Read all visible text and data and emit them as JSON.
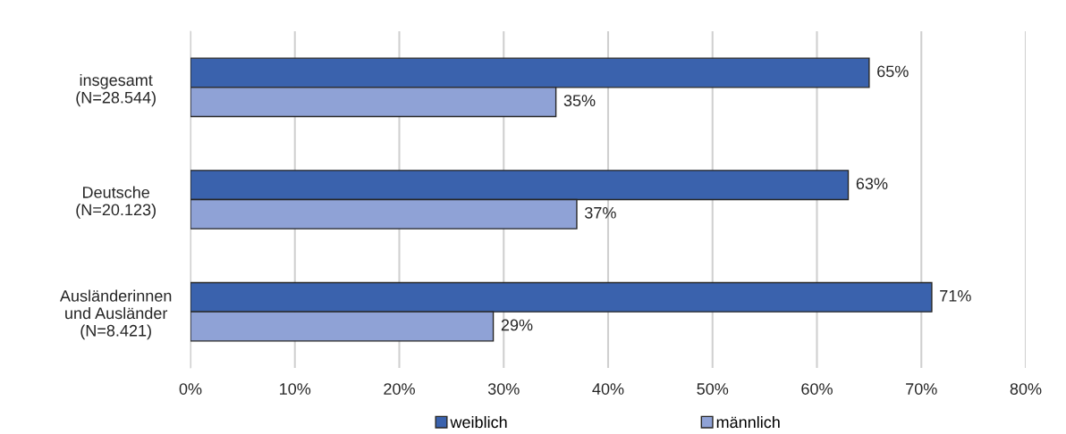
{
  "chart_data": {
    "type": "bar",
    "orientation": "horizontal",
    "categories": [
      "insgesamt\n(N=28.544)",
      "Deutsche\n(N=20.123)",
      "Ausländerinnen\nund Ausländer\n(N=8.421)"
    ],
    "series": [
      {
        "name": "weiblich",
        "color": "#3a62ad",
        "values": [
          65,
          63,
          71
        ],
        "value_labels": [
          "65%",
          "63%",
          "71%"
        ]
      },
      {
        "name": "männlich",
        "color": "#8fa2d6",
        "values": [
          35,
          37,
          29
        ],
        "value_labels": [
          "35%",
          "37%",
          "29%"
        ]
      }
    ],
    "xlim": [
      0,
      80
    ],
    "xticks": [
      {
        "value": 0,
        "label": "0%"
      },
      {
        "value": 10,
        "label": "10%"
      },
      {
        "value": 20,
        "label": "20%"
      },
      {
        "value": 30,
        "label": "30%"
      },
      {
        "value": 40,
        "label": "40%"
      },
      {
        "value": 50,
        "label": "50%"
      },
      {
        "value": 60,
        "label": "60%"
      },
      {
        "value": 70,
        "label": "70%"
      },
      {
        "value": 80,
        "label": "80%"
      }
    ],
    "grid": "x",
    "legend": "bottom"
  }
}
